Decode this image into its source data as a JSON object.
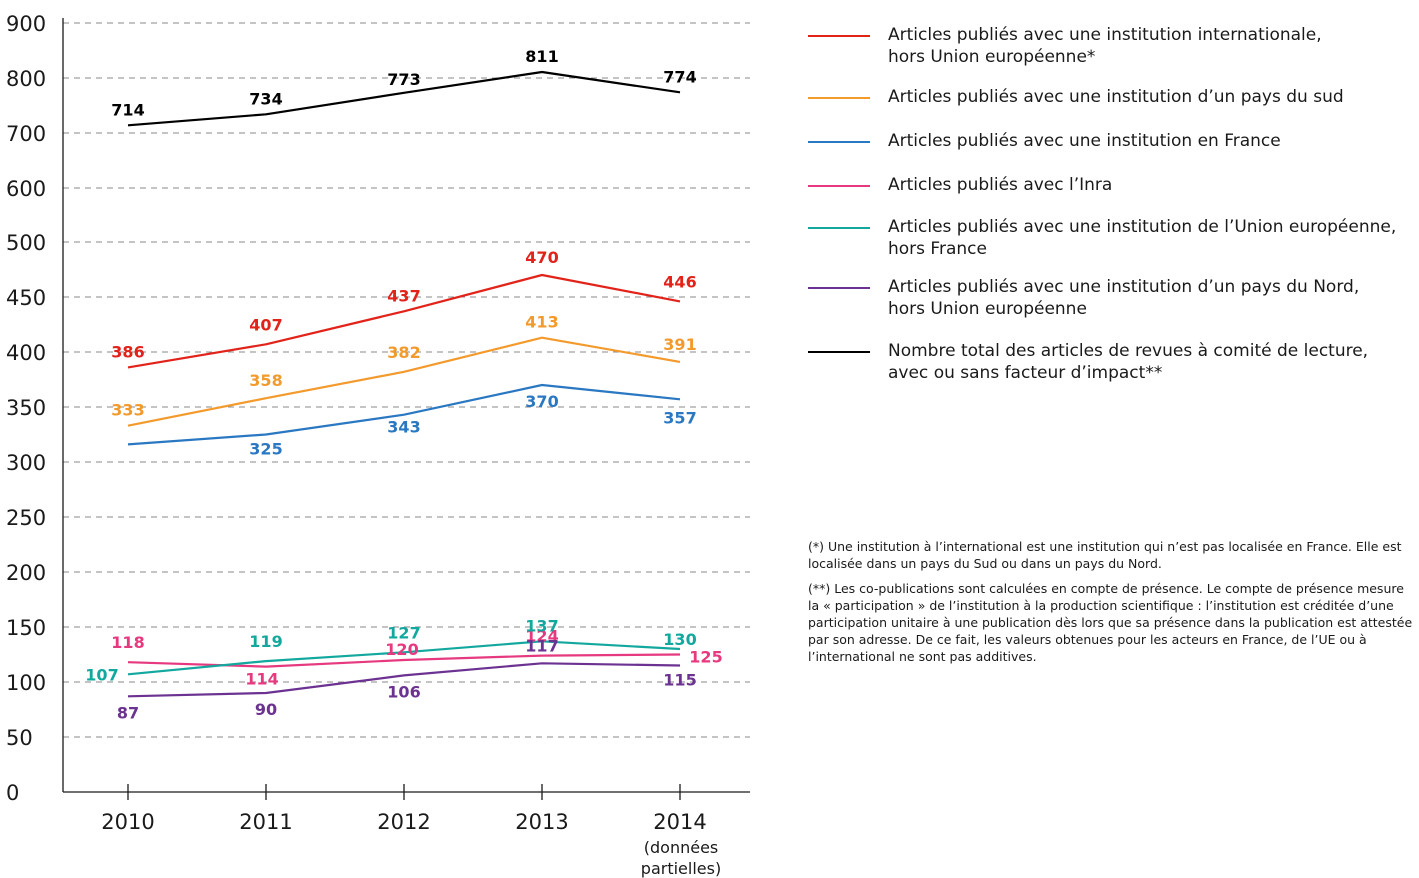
{
  "chart_data": {
    "type": "line",
    "title": "",
    "xlabel": "",
    "ylabel": "",
    "categories": [
      "2010",
      "2011",
      "2012",
      "2013",
      "2014"
    ],
    "category_sublabels": [
      "",
      "",
      "",
      "",
      "(données\npartielles)"
    ],
    "y_ticks": [
      0,
      50,
      100,
      150,
      200,
      250,
      300,
      350,
      400,
      450,
      500,
      600,
      700,
      800,
      900
    ],
    "ylim": [
      0,
      900
    ],
    "axis_note": "broken y-axis: segments of 50 up to 500, then 100",
    "grid": "horizontal dashed",
    "legend_position": "right",
    "series": [
      {
        "name": "Articles publiés avec une institution internationale,\nhors Union européenne*",
        "color": "#e2231a",
        "values": [
          386,
          407,
          437,
          470,
          446
        ]
      },
      {
        "name": "Articles publiés avec une institution d’un pays du sud",
        "color": "#f39a2d",
        "values": [
          333,
          358,
          382,
          413,
          391
        ]
      },
      {
        "name": "Articles publiés avec une institution en France",
        "color": "#2a78c2",
        "values": [
          316,
          325,
          343,
          370,
          357
        ]
      },
      {
        "name": "Articles publiés avec l’Inra",
        "color": "#e6397f",
        "values": [
          118,
          114,
          120,
          124,
          125
        ]
      },
      {
        "name": "Articles publiés avec une institution de l’Union européenne,\n hors France",
        "color": "#13a89e",
        "values": [
          107,
          119,
          127,
          137,
          130
        ]
      },
      {
        "name": "Articles publiés avec une institution d’un pays du Nord,\nhors Union européenne",
        "color": "#6b3291",
        "values": [
          87,
          90,
          106,
          117,
          115
        ]
      },
      {
        "name": "Nombre total des articles de revues à comité de lecture,\navec ou sans facteur d’impact**",
        "color": "#000000",
        "values": [
          714,
          734,
          773,
          811,
          774
        ]
      }
    ],
    "data_labels": [
      [
        "386",
        "407",
        "437",
        "470",
        "446"
      ],
      [
        "333",
        "358",
        "382",
        "413",
        "391"
      ],
      [
        "",
        "325",
        "343",
        "370",
        "357"
      ],
      [
        "118",
        "114",
        "120",
        "124",
        "125"
      ],
      [
        "107",
        "119",
        "127",
        "137",
        "130"
      ],
      [
        "87",
        "90",
        "106",
        "117",
        "115"
      ],
      [
        "714",
        "734",
        "773",
        "811",
        "774"
      ]
    ]
  },
  "notes": {
    "note1": "(*) Une institution à l’international est une institution qui n’est pas localisée en France. Elle est localisée dans un pays du Sud ou dans un pays du Nord.",
    "note2": "(**) Les co-publications sont calculées en compte de présence. Le compte de présence mesure la « participation » de l’institution à la production scientifique : l’institution est créditée d’une participation unitaire à une publication dès lors que sa présence dans la publication est attestée par son adresse. De ce fait, les valeurs obtenues pour les acteurs en France, de l’UE ou à l’international ne sont pas additives."
  }
}
